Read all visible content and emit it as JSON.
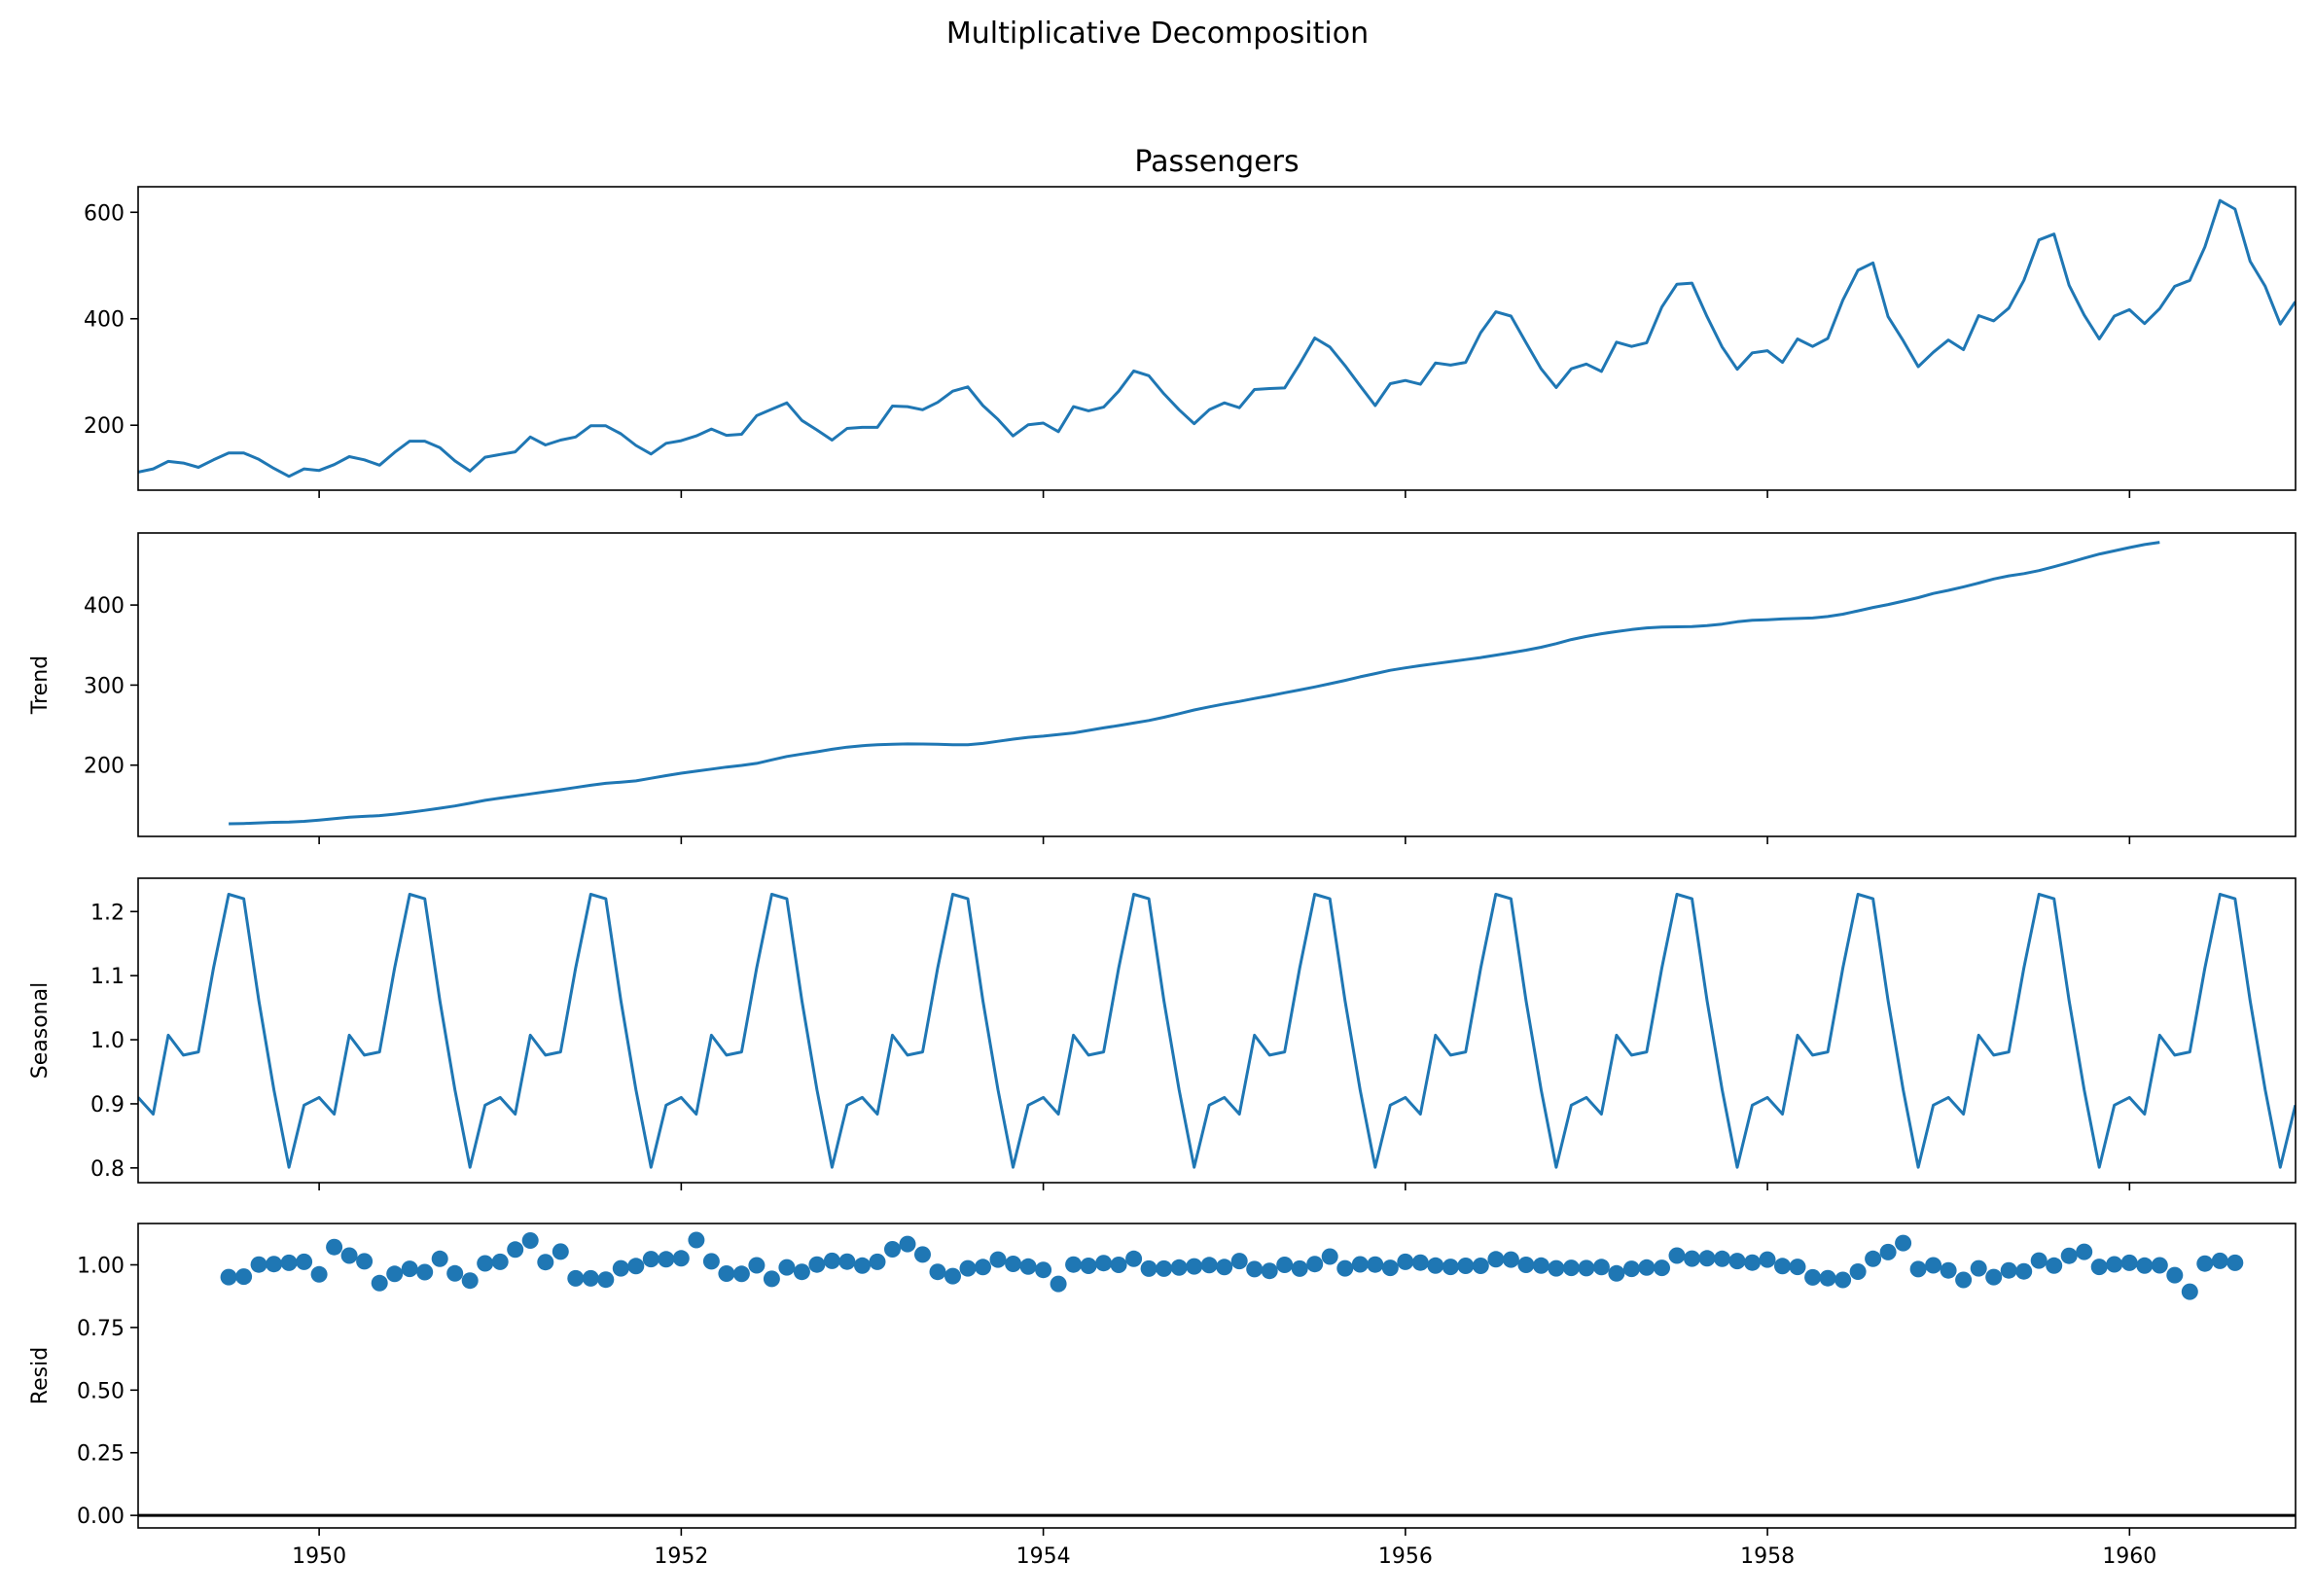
{
  "suptitle": "Multiplicative Decomposition",
  "chart_data": [
    {
      "type": "line",
      "title": "Passengers",
      "ylabel": "",
      "xlim": [
        1949.0,
        1960.917
      ],
      "ylim": [
        78,
        648
      ],
      "yticks": [
        200,
        400,
        600
      ],
      "xticks": [
        1950,
        1952,
        1954,
        1956,
        1958,
        1960
      ],
      "color": "#1f77b4",
      "series": [
        {
          "x_start": 1949.0,
          "x_step": 0.08333,
          "values": [
            112,
            118,
            132,
            129,
            121,
            135,
            148,
            148,
            136,
            119,
            104,
            118,
            115,
            126,
            141,
            135,
            125,
            149,
            170,
            170,
            158,
            133,
            114,
            140,
            145,
            150,
            178,
            163,
            172,
            178,
            199,
            199,
            184,
            162,
            146,
            166,
            171,
            180,
            193,
            181,
            183,
            218,
            230,
            242,
            209,
            191,
            172,
            194,
            196,
            196,
            236,
            235,
            229,
            243,
            264,
            272,
            237,
            211,
            180,
            201,
            204,
            188,
            235,
            227,
            234,
            264,
            302,
            293,
            259,
            229,
            203,
            229,
            242,
            233,
            267,
            269,
            270,
            315,
            364,
            347,
            312,
            274,
            237,
            278,
            284,
            277,
            317,
            313,
            318,
            374,
            413,
            405,
            355,
            306,
            271,
            306,
            315,
            301,
            356,
            348,
            355,
            422,
            465,
            467,
            404,
            347,
            305,
            336,
            340,
            318,
            362,
            348,
            363,
            435,
            491,
            505,
            404,
            359,
            310,
            337,
            360,
            342,
            406,
            396,
            420,
            472,
            548,
            559,
            463,
            407,
            362,
            405,
            417,
            391,
            419,
            461,
            472,
            535,
            622,
            606,
            508,
            461,
            390,
            432
          ]
        }
      ]
    },
    {
      "type": "line",
      "ylabel": "Trend",
      "xlim": [
        1949.0,
        1960.917
      ],
      "ylim": [
        111,
        490
      ],
      "yticks": [
        200,
        300,
        400
      ],
      "xticks": [
        1950,
        1952,
        1954,
        1956,
        1958,
        1960
      ],
      "color": "#1f77b4",
      "series": [
        {
          "x_start": 1949.5,
          "x_step": 0.08333,
          "values": [
            126.8,
            127.2,
            127.9,
            128.6,
            129.0,
            129.8,
            131.3,
            133.1,
            134.9,
            136.0,
            137.0,
            138.8,
            141.0,
            143.5,
            146.2,
            149.0,
            152.4,
            156.1,
            158.9,
            161.4,
            164.1,
            166.7,
            169.3,
            172.1,
            174.9,
            177.3,
            178.8,
            180.4,
            183.6,
            186.9,
            189.9,
            192.5,
            195.1,
            197.6,
            199.7,
            202.2,
            206.6,
            210.8,
            213.9,
            216.7,
            219.8,
            222.5,
            224.3,
            225.5,
            226.2,
            226.5,
            226.4,
            226.0,
            225.5,
            225.5,
            227.1,
            229.8,
            232.5,
            234.8,
            236.3,
            238.2,
            240.3,
            243.4,
            246.6,
            249.5,
            252.6,
            255.8,
            259.8,
            264.3,
            268.9,
            272.8,
            276.5,
            279.6,
            283.2,
            286.7,
            290.4,
            294.0,
            297.7,
            301.7,
            305.9,
            310.3,
            314.4,
            318.5,
            321.5,
            324.3,
            326.9,
            329.3,
            331.8,
            334.4,
            337.4,
            340.5,
            343.6,
            347.3,
            351.8,
            356.9,
            360.8,
            364.1,
            366.8,
            369.4,
            371.5,
            372.5,
            372.8,
            373.2,
            374.3,
            376.2,
            379.1,
            380.9,
            381.7,
            382.6,
            383.2,
            383.8,
            385.6,
            388.6,
            392.7,
            397.0,
            400.6,
            404.8,
            409.2,
            414.4,
            418.3,
            422.7,
            427.5,
            432.5,
            436.4,
            439.2,
            443.0,
            447.8,
            453.1,
            458.5,
            463.6,
            467.6,
            471.8,
            475.5,
            478.3
          ]
        }
      ]
    },
    {
      "type": "line",
      "ylabel": "Seasonal",
      "xlim": [
        1949.0,
        1960.917
      ],
      "ylim": [
        0.777,
        1.252
      ],
      "yticks": [
        0.8,
        0.9,
        1.0,
        1.1,
        1.2
      ],
      "ytick_labels": [
        "0.8",
        "0.9",
        "1.0",
        "1.1",
        "1.2"
      ],
      "xticks": [
        1950,
        1952,
        1954,
        1956,
        1958,
        1960
      ],
      "color": "#1f77b4",
      "series": [
        {
          "x_start": 1949.0,
          "x_step": 0.08333,
          "pattern": [
            0.91,
            0.884,
            1.007,
            0.976,
            0.981,
            1.112,
            1.227,
            1.22,
            1.061,
            0.922,
            0.801,
            0.898
          ],
          "repeat": 12
        }
      ]
    },
    {
      "type": "scatter",
      "ylabel": "Resid",
      "xlim": [
        1949.0,
        1960.917
      ],
      "ylim": [
        -0.05,
        1.165
      ],
      "yticks": [
        0.0,
        0.25,
        0.5,
        0.75,
        1.0
      ],
      "ytick_labels": [
        "0.00",
        "0.25",
        "0.50",
        "0.75",
        "1.00"
      ],
      "xticks": [
        1950,
        1952,
        1954,
        1956,
        1958,
        1960
      ],
      "baseline": 0,
      "color": "#1f77b4",
      "series": [
        {
          "x_start": 1949.5,
          "x_step": 0.08333,
          "values": [
            0.951,
            0.953,
            1.001,
            1.003,
            1.008,
            1.012,
            0.962,
            1.071,
            1.037,
            1.014,
            0.927,
            0.964,
            0.984,
            0.971,
            1.024,
            0.966,
            0.937,
            1.006,
            1.012,
            1.061,
            1.097,
            1.011,
            1.053,
            0.946,
            0.946,
            0.941,
            0.986,
            0.995,
            1.023,
            1.022,
            1.026,
            1.099,
            1.014,
            0.965,
            0.964,
            0.998,
            0.944,
            0.99,
            0.972,
            1.001,
            1.016,
            1.013,
            0.997,
            1.012,
            1.062,
            1.083,
            1.041,
            0.972,
            0.955,
            0.986,
            0.991,
            1.021,
            1.004,
            0.993,
            0.98,
            0.924,
            1.001,
            0.996,
            1.007,
            1.0,
            1.024,
            0.985,
            0.985,
            0.989,
            0.994,
            0.999,
            0.991,
            1.015,
            0.983,
            0.976,
            1.0,
            0.985,
            1.003,
            1.033,
            0.986,
            1.002,
            1.001,
            0.988,
            1.012,
            1.009,
            0.997,
            0.992,
            0.996,
            0.996,
            1.022,
            1.021,
            1.0,
            0.997,
            0.986,
            0.988,
            0.987,
            0.991,
            0.966,
            0.984,
            0.989,
            0.988,
            1.037,
            1.025,
            1.026,
            1.024,
            1.015,
            1.009,
            1.021,
            0.995,
            0.992,
            0.95,
            0.947,
            0.94,
            0.973,
            1.024,
            1.051,
            1.087,
            0.983,
            0.998,
            0.978,
            0.94,
            0.986,
            0.951,
            0.978,
            0.974,
            1.017,
            0.997,
            1.036,
            1.052,
            0.992,
            1.002,
            1.008,
            0.997,
            0.998,
            0.959,
            0.893,
            1.005,
            1.016,
            1.008
          ]
        }
      ]
    }
  ]
}
